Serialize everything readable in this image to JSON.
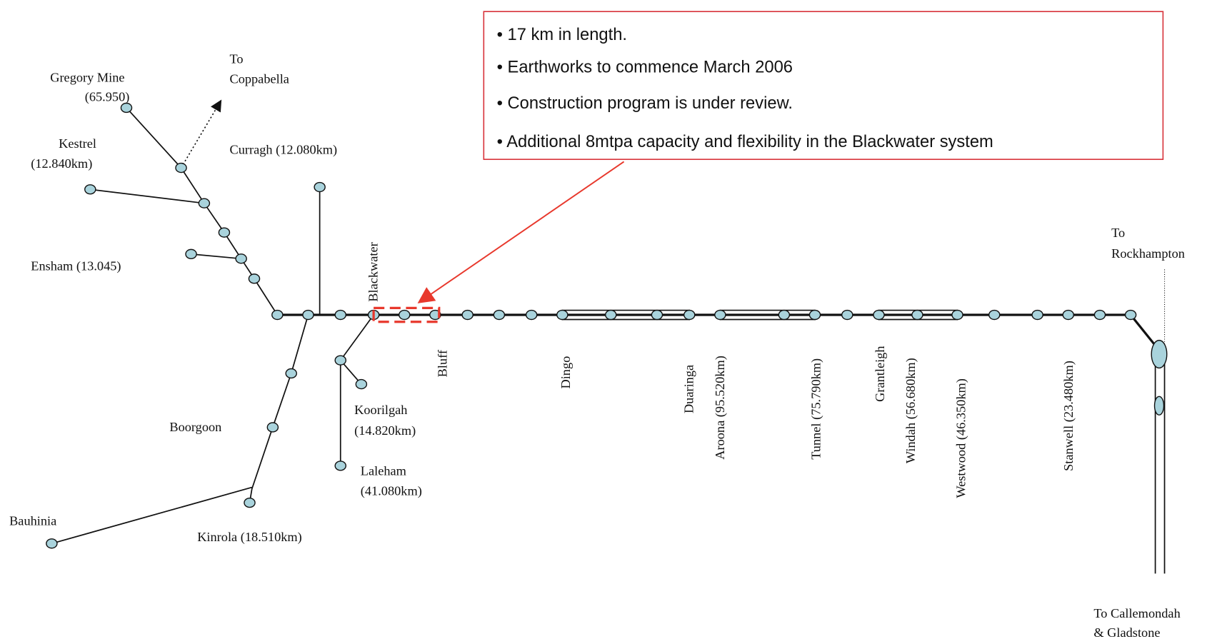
{
  "callout": {
    "bullets": [
      "• 17 km in length.",
      "• Earthworks to commence March 2006",
      "• Construction program is under review.",
      "• Additional 8mtpa capacity and flexibility in the Blackwater system"
    ]
  },
  "labels": {
    "to_coppabella": [
      "To",
      "Coppabella"
    ],
    "gregory": [
      "Gregory Mine",
      "(65.950)"
    ],
    "kestrel": [
      "Kestrel",
      "(12.840km)"
    ],
    "curragh": "Curragh (12.080km)",
    "ensham": "Ensham (13.045)",
    "blackwater": "Blackwater",
    "bluff": "Bluff",
    "dingo": "Dingo",
    "duaringa": "Duaringa",
    "aroona": "Aroona (95.520km)",
    "tunnel": "Tunnel (75.790km)",
    "grantleigh": "Grantleigh",
    "windah": "Windah (56.680km)",
    "westwood": "Westwood (46.350km)",
    "stanwell": "Stanwell (23.480km)",
    "to_rockhampton": [
      "To",
      "Rockhampton"
    ],
    "koorilgah": [
      "Koorilgah",
      "(14.820km)"
    ],
    "laleham": [
      "Laleham",
      "(41.080km)"
    ],
    "boorgoon": "Boorgoon",
    "bauhinia": "Bauhinia",
    "kinrola": "Kinrola (18.510km)",
    "to_gladstone": [
      "To Callemondah",
      "& Gladstone"
    ]
  }
}
